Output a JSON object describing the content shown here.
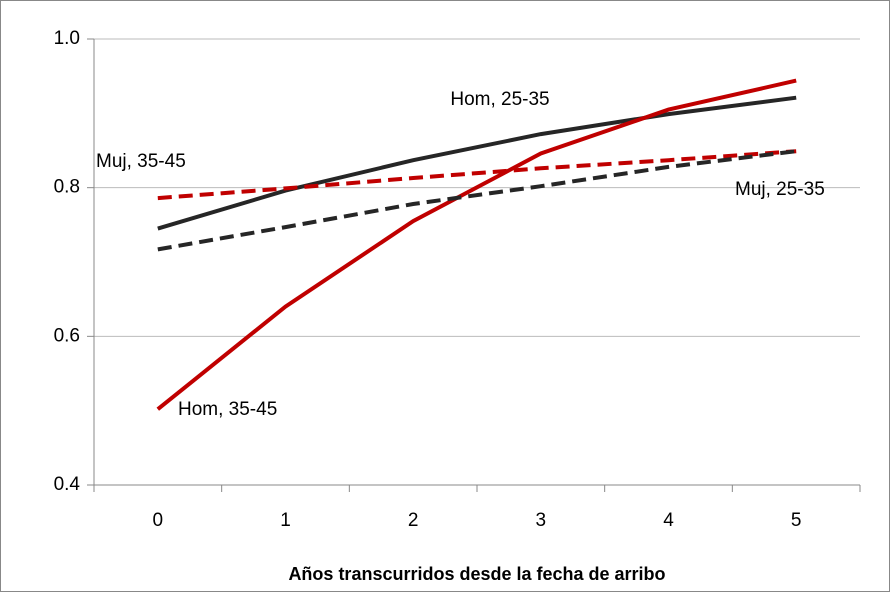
{
  "chart_data": {
    "type": "line",
    "x_label": "Años transcurridos desde la fecha de arribo",
    "categories": [
      "0",
      "1",
      "2",
      "3",
      "4",
      "5"
    ],
    "series": [
      {
        "name": "Hom, 25-35",
        "color": "#262626",
        "dash": false,
        "values": [
          0.745,
          0.796,
          0.837,
          0.872,
          0.899,
          0.921
        ]
      },
      {
        "name": "Hom, 35-45",
        "color": "#c00000",
        "dash": false,
        "values": [
          0.502,
          0.64,
          0.755,
          0.846,
          0.905,
          0.944
        ]
      },
      {
        "name": "Muj, 35-45",
        "color": "#c00000",
        "dash": true,
        "values": [
          0.786,
          0.799,
          0.813,
          0.826,
          0.837,
          0.849
        ]
      },
      {
        "name": "Muj, 25-35",
        "color": "#262626",
        "dash": true,
        "values": [
          0.717,
          0.747,
          0.778,
          0.802,
          0.828,
          0.849
        ]
      }
    ],
    "ylim": [
      0.4,
      1
    ],
    "yticks": [
      0.4,
      0.6,
      0.8,
      {
        "value": 1,
        "label": "1.0"
      }
    ],
    "grid": true
  }
}
